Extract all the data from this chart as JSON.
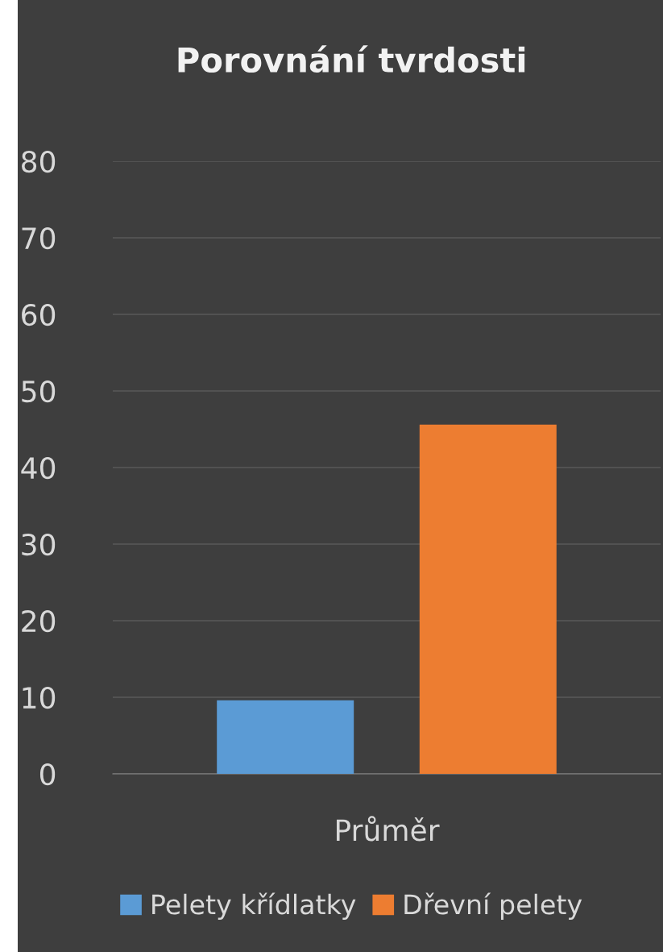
{
  "chart_data": {
    "type": "bar",
    "title": "Porovnání tvrdosti",
    "categories": [
      "Průměr"
    ],
    "series": [
      {
        "name": "Pelety křídlatky",
        "color": "#5b9bd5",
        "values": [
          9.6
        ]
      },
      {
        "name": "Dřevní pelety",
        "color": "#ed7d31",
        "values": [
          45.6
        ]
      }
    ],
    "ylim": [
      0,
      80
    ],
    "yticks": [
      0,
      10,
      20,
      30,
      40,
      50,
      60,
      70,
      80
    ],
    "grid": "y",
    "legend": "bottom"
  }
}
